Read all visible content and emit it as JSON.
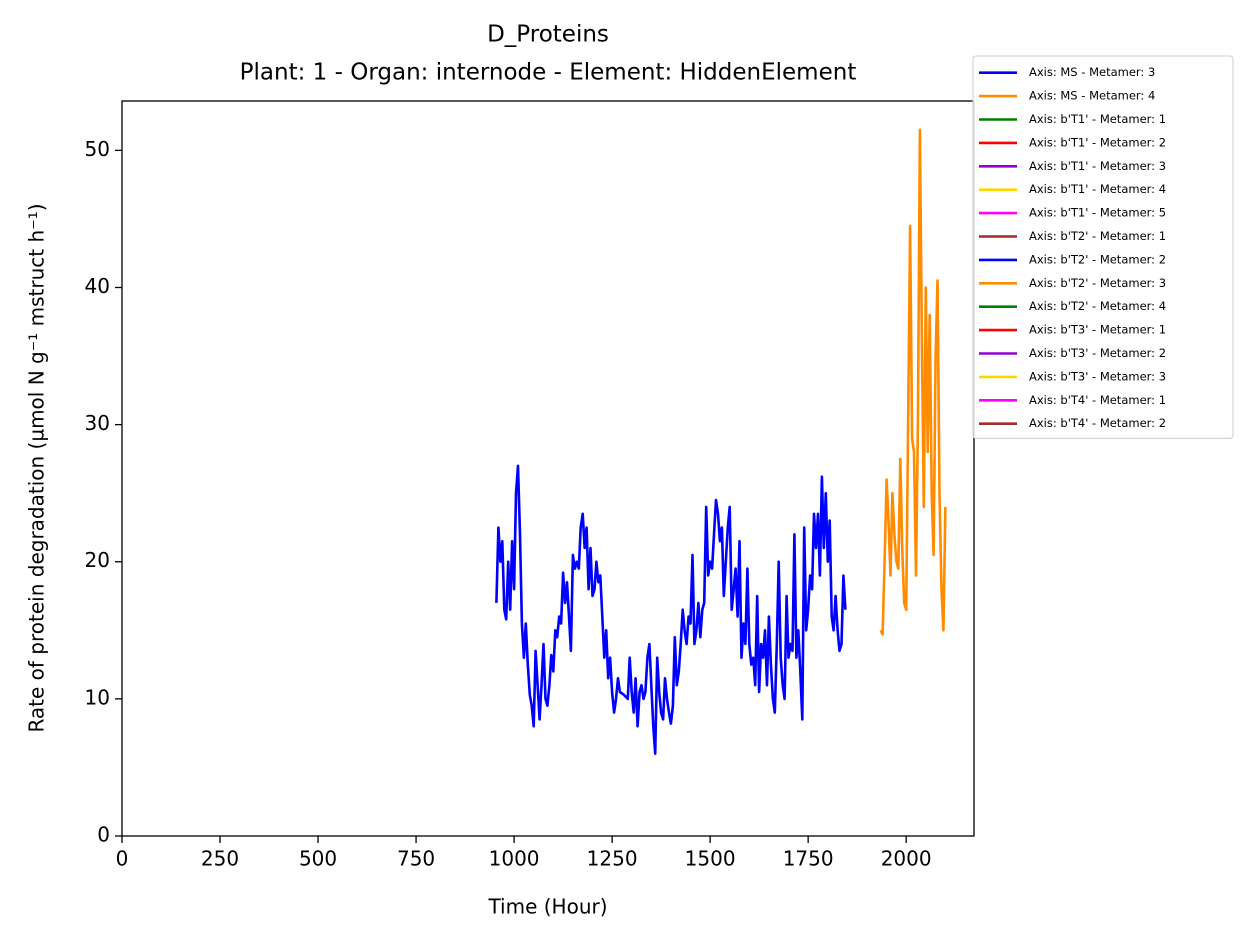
{
  "chart_data": {
    "type": "line",
    "title": "D_Proteins",
    "subtitle": "Plant: 1 - Organ: internode - Element: HiddenElement",
    "x_label": "Time (Hour)",
    "y_label": "Rate of protein degradation (µmol N g⁻¹ mstruct h⁻¹)",
    "xlim": [
      0,
      2173
    ],
    "ylim": [
      0,
      53.6
    ],
    "xticks": [
      0,
      250,
      500,
      750,
      1000,
      1250,
      1500,
      1750,
      2000
    ],
    "yticks": [
      0,
      10,
      20,
      30,
      40,
      50
    ],
    "legend": "outside-upper-right",
    "series": [
      {
        "name": "Axis: MS - Metamer: 3",
        "color": "#0000ff",
        "x": [
          955,
          960,
          965,
          970,
          975,
          980,
          985,
          990,
          995,
          1000,
          1005,
          1010,
          1015,
          1020,
          1025,
          1030,
          1035,
          1040,
          1045,
          1050,
          1055,
          1060,
          1065,
          1070,
          1075,
          1080,
          1085,
          1090,
          1095,
          1100,
          1105,
          1110,
          1115,
          1120,
          1125,
          1130,
          1135,
          1140,
          1145,
          1150,
          1155,
          1160,
          1165,
          1170,
          1175,
          1180,
          1185,
          1190,
          1195,
          1200,
          1205,
          1210,
          1215,
          1220,
          1225,
          1230,
          1235,
          1240,
          1245,
          1250,
          1255,
          1260,
          1265,
          1270,
          1280,
          1290,
          1295,
          1300,
          1305,
          1310,
          1315,
          1320,
          1325,
          1330,
          1335,
          1340,
          1345,
          1350,
          1355,
          1360,
          1365,
          1370,
          1375,
          1380,
          1385,
          1390,
          1395,
          1400,
          1405,
          1410,
          1415,
          1420,
          1425,
          1430,
          1435,
          1440,
          1445,
          1450,
          1455,
          1460,
          1465,
          1470,
          1475,
          1480,
          1485,
          1490,
          1495,
          1500,
          1505,
          1510,
          1515,
          1520,
          1525,
          1530,
          1535,
          1540,
          1545,
          1550,
          1555,
          1560,
          1565,
          1570,
          1575,
          1580,
          1585,
          1590,
          1595,
          1600,
          1605,
          1610,
          1615,
          1620,
          1625,
          1630,
          1635,
          1640,
          1645,
          1650,
          1655,
          1660,
          1665,
          1670,
          1675,
          1680,
          1685,
          1690,
          1695,
          1700,
          1705,
          1710,
          1715,
          1720,
          1725,
          1730,
          1735,
          1740,
          1745,
          1750,
          1755,
          1760,
          1765,
          1770,
          1775,
          1780,
          1785,
          1790,
          1795,
          1800,
          1805,
          1810,
          1815,
          1820,
          1825,
          1830,
          1835,
          1840,
          1845
        ],
        "values": [
          17,
          22.5,
          20,
          21.5,
          16.5,
          15.8,
          20,
          16.5,
          21.5,
          18,
          25,
          27,
          22,
          15.5,
          13,
          15.5,
          12.5,
          10.3,
          9.5,
          8,
          13.5,
          11,
          8.5,
          11,
          14,
          10,
          9.5,
          11,
          13.2,
          12,
          15,
          14.5,
          16,
          15.5,
          19.2,
          17,
          18.5,
          16,
          13.5,
          20.5,
          19.5,
          20,
          19.5,
          22.5,
          23.5,
          21,
          22.5,
          18,
          21,
          17.5,
          18,
          20,
          18.5,
          19,
          16,
          13,
          15,
          11.5,
          13,
          10.5,
          9,
          10,
          11.5,
          10.5,
          10.3,
          10,
          13,
          10.5,
          9,
          11.5,
          8,
          10.5,
          11,
          10,
          10.5,
          13,
          14,
          11,
          8,
          6,
          13,
          10.5,
          9,
          8.5,
          11.5,
          10,
          9,
          8.2,
          9.5,
          14.5,
          11,
          12,
          14,
          16.5,
          15,
          14,
          16,
          15.5,
          20.5,
          14,
          15,
          17,
          14.5,
          16.5,
          17,
          24,
          19,
          20,
          19.5,
          22,
          24.5,
          23.5,
          21.5,
          22.5,
          17.5,
          20,
          22.5,
          24,
          16.5,
          18,
          19.5,
          16,
          21.5,
          13,
          15.5,
          14,
          19.5,
          14,
          12.5,
          13,
          11,
          17.5,
          10.5,
          14,
          13,
          15,
          11,
          16,
          12.5,
          10,
          9,
          14,
          20,
          13,
          11,
          10,
          17.5,
          13,
          14,
          13.5,
          22,
          13,
          15,
          12,
          8.5,
          22.5,
          15,
          16.5,
          19,
          18,
          23.5,
          21,
          23.5,
          19,
          26.2,
          21,
          25,
          20,
          23,
          16,
          15,
          17.5,
          15,
          13.5,
          14,
          19,
          16.5
        ]
      },
      {
        "name": "Axis: MS - Metamer: 4",
        "color": "#ff8c00",
        "x": [
          1935,
          1940,
          1945,
          1950,
          1955,
          1960,
          1965,
          1970,
          1975,
          1980,
          1985,
          1990,
          1995,
          2000,
          2005,
          2010,
          2015,
          2020,
          2025,
          2030,
          2035,
          2040,
          2045,
          2050,
          2055,
          2060,
          2065,
          2070,
          2075,
          2080,
          2085,
          2090,
          2095,
          2100
        ],
        "values": [
          15,
          14.7,
          20,
          26,
          23,
          19,
          25,
          22,
          20,
          19.5,
          27.5,
          21,
          17,
          16.5,
          30,
          44.5,
          29,
          28,
          19,
          30,
          51.5,
          36,
          24,
          40,
          28,
          38,
          25,
          20.5,
          35,
          40.5,
          25,
          18,
          15,
          24
        ]
      },
      {
        "name": "Axis: b'T1' - Metamer: 1",
        "color": "#008000",
        "x": [],
        "values": []
      },
      {
        "name": "Axis: b'T1' - Metamer: 2",
        "color": "#ff0000",
        "x": [],
        "values": []
      },
      {
        "name": "Axis: b'T1' - Metamer: 3",
        "color": "#9400d3",
        "x": [],
        "values": []
      },
      {
        "name": "Axis: b'T1' - Metamer: 4",
        "color": "#ffd700",
        "x": [],
        "values": []
      },
      {
        "name": "Axis: b'T1' - Metamer: 5",
        "color": "#ff00ff",
        "x": [],
        "values": []
      },
      {
        "name": "Axis: b'T2' - Metamer: 1",
        "color": "#a52a2a",
        "x": [],
        "values": []
      },
      {
        "name": "Axis: b'T2' - Metamer: 2",
        "color": "#0000ff",
        "x": [],
        "values": []
      },
      {
        "name": "Axis: b'T2' - Metamer: 3",
        "color": "#ff8c00",
        "x": [],
        "values": []
      },
      {
        "name": "Axis: b'T2' - Metamer: 4",
        "color": "#008000",
        "x": [],
        "values": []
      },
      {
        "name": "Axis: b'T3' - Metamer: 1",
        "color": "#ff0000",
        "x": [],
        "values": []
      },
      {
        "name": "Axis: b'T3' - Metamer: 2",
        "color": "#9400d3",
        "x": [],
        "values": []
      },
      {
        "name": "Axis: b'T3' - Metamer: 3",
        "color": "#ffd700",
        "x": [],
        "values": []
      },
      {
        "name": "Axis: b'T4' - Metamer: 1",
        "color": "#ff00ff",
        "x": [],
        "values": []
      },
      {
        "name": "Axis: b'T4' - Metamer: 2",
        "color": "#a52a2a",
        "x": [],
        "values": []
      }
    ]
  }
}
